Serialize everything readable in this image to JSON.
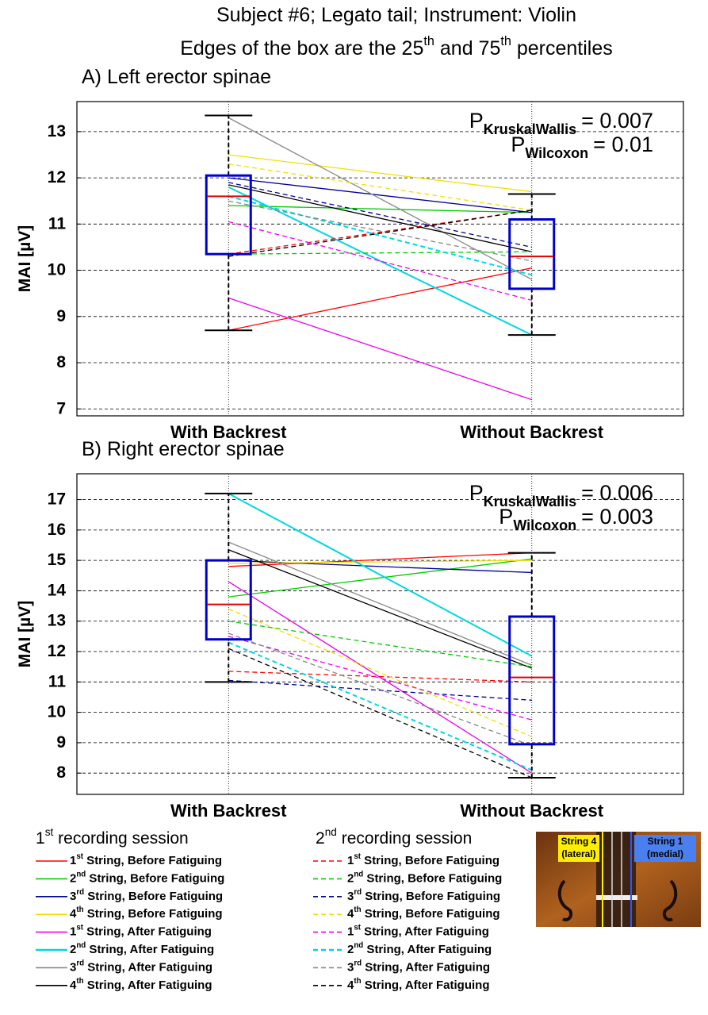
{
  "header": {
    "title": "Subject #6; Legato tail; Instrument: Violin",
    "subtitle": "Edges of the box are the 25th and 75th percentiles"
  },
  "chart_data": [
    {
      "type": "box",
      "title": "A) Left erector spinae",
      "ylabel": "MAI [µV]",
      "categories": [
        "With Backrest",
        "Without Backrest"
      ],
      "ylim": [
        6.85,
        13.65
      ],
      "yticks": [
        7,
        8,
        9,
        10,
        11,
        12,
        13
      ],
      "grid": true,
      "boxes": [
        {
          "whislo": 8.7,
          "q1": 10.35,
          "med": 11.6,
          "q3": 12.05,
          "whishi": 13.35
        },
        {
          "whislo": 8.6,
          "q1": 9.6,
          "med": 10.3,
          "q3": 11.1,
          "whishi": 11.65
        }
      ],
      "box_color": "#0000cc",
      "median_color": "#e00000",
      "whisker_color": "#000000",
      "legend_titles": [
        "1st recording session",
        "2nd recording session"
      ],
      "series": [
        {
          "name": "1st String, Before Fatiguing",
          "color": "#ff0000",
          "linestyle": "solid",
          "values": [
            8.7,
            10.05
          ]
        },
        {
          "name": "2nd String, Before Fatiguing",
          "color": "#00cc00",
          "linestyle": "solid",
          "values": [
            11.4,
            11.25
          ]
        },
        {
          "name": "3rd String, Before Fatiguing",
          "color": "#000099",
          "linestyle": "solid",
          "values": [
            12.0,
            11.25
          ]
        },
        {
          "name": "4th String, Before Fatiguing",
          "color": "#f0e000",
          "linestyle": "solid",
          "values": [
            12.5,
            11.7
          ]
        },
        {
          "name": "1st String, After Fatiguing",
          "color": "#ee00ee",
          "linestyle": "solid",
          "values": [
            9.4,
            7.2
          ]
        },
        {
          "name": "2nd String, After Fatiguing",
          "color": "#00d8e0",
          "linestyle": "solid",
          "values": [
            11.8,
            8.6
          ]
        },
        {
          "name": "3rd String, After Fatiguing",
          "color": "#888888",
          "linestyle": "solid",
          "values": [
            13.3,
            9.8
          ]
        },
        {
          "name": "4th String, After Fatiguing",
          "color": "#000000",
          "linestyle": "solid",
          "values": [
            11.85,
            10.4
          ]
        },
        {
          "name": "1st String, Before Fatiguing",
          "color": "#ff0000",
          "linestyle": "dashed",
          "values": [
            10.35,
            11.3
          ]
        },
        {
          "name": "2nd String, Before Fatiguing",
          "color": "#00cc00",
          "linestyle": "dashed",
          "values": [
            10.35,
            10.4
          ]
        },
        {
          "name": "3rd String, Before Fatiguing",
          "color": "#000099",
          "linestyle": "dashed",
          "values": [
            11.9,
            10.5
          ]
        },
        {
          "name": "4th String, Before Fatiguing",
          "color": "#f0e000",
          "linestyle": "dashed",
          "values": [
            12.3,
            11.3
          ]
        },
        {
          "name": "1st String, After Fatiguing",
          "color": "#ee00ee",
          "linestyle": "dashed",
          "values": [
            11.05,
            9.35
          ]
        },
        {
          "name": "2nd String, After Fatiguing",
          "color": "#00d8e0",
          "linestyle": "dashed",
          "values": [
            11.6,
            9.9
          ]
        },
        {
          "name": "3rd String, After Fatiguing",
          "color": "#888888",
          "linestyle": "dashed",
          "values": [
            11.5,
            10.2
          ]
        },
        {
          "name": "4th String, After Fatiguing",
          "color": "#000000",
          "linestyle": "dashed",
          "values": [
            10.3,
            11.3
          ]
        }
      ],
      "annotations": [
        {
          "text": "P",
          "subscript": "KruskalWallis",
          "rest": "= 0.007"
        },
        {
          "text": "P",
          "subscript": "Wilcoxon",
          "rest": "= 0.01"
        }
      ]
    },
    {
      "type": "box",
      "title": "B) Right erector spinae",
      "ylabel": "MAI [µV]",
      "categories": [
        "With Backrest",
        "Without Backrest"
      ],
      "ylim": [
        7.3,
        17.85
      ],
      "yticks": [
        8,
        9,
        10,
        11,
        12,
        13,
        14,
        15,
        16,
        17
      ],
      "grid": true,
      "boxes": [
        {
          "whislo": 11.0,
          "q1": 12.4,
          "med": 13.55,
          "q3": 15.0,
          "whishi": 17.2
        },
        {
          "whislo": 7.85,
          "q1": 8.95,
          "med": 11.15,
          "q3": 13.15,
          "whishi": 15.25
        }
      ],
      "box_color": "#0000cc",
      "median_color": "#e00000",
      "whisker_color": "#000000",
      "series": [
        {
          "color": "#ff0000",
          "linestyle": "solid",
          "values": [
            14.8,
            15.25
          ]
        },
        {
          "color": "#00cc00",
          "linestyle": "solid",
          "values": [
            13.8,
            15.05
          ]
        },
        {
          "color": "#000099",
          "linestyle": "solid",
          "values": [
            15.0,
            14.6
          ]
        },
        {
          "color": "#f0e000",
          "linestyle": "solid",
          "values": [
            14.9,
            15.0
          ]
        },
        {
          "color": "#ee00ee",
          "linestyle": "solid",
          "values": [
            14.3,
            8.0
          ]
        },
        {
          "color": "#00d8e0",
          "linestyle": "solid",
          "values": [
            17.2,
            11.85
          ]
        },
        {
          "color": "#888888",
          "linestyle": "solid",
          "values": [
            15.6,
            11.55
          ]
        },
        {
          "color": "#000000",
          "linestyle": "solid",
          "values": [
            15.35,
            11.45
          ]
        },
        {
          "color": "#ff0000",
          "linestyle": "dashed",
          "values": [
            11.35,
            11.0
          ]
        },
        {
          "color": "#00cc00",
          "linestyle": "dashed",
          "values": [
            13.0,
            11.5
          ]
        },
        {
          "color": "#000099",
          "linestyle": "dashed",
          "values": [
            11.05,
            10.4
          ]
        },
        {
          "color": "#f0e000",
          "linestyle": "dashed",
          "values": [
            13.4,
            9.2
          ]
        },
        {
          "color": "#ee00ee",
          "linestyle": "dashed",
          "values": [
            12.5,
            9.75
          ]
        },
        {
          "color": "#00d8e0",
          "linestyle": "dashed",
          "values": [
            12.3,
            8.1
          ]
        },
        {
          "color": "#888888",
          "linestyle": "dashed",
          "values": [
            12.6,
            8.9
          ]
        },
        {
          "color": "#000000",
          "linestyle": "dashed",
          "values": [
            12.1,
            7.85
          ]
        }
      ],
      "annotations": [
        {
          "text": "P",
          "subscript": "KruskalWallis",
          "rest": "= 0.006"
        },
        {
          "text": "P",
          "subscript": "Wilcoxon",
          "rest": "= 0.003"
        }
      ]
    }
  ],
  "inset": {
    "labels": [
      [
        "String 4",
        "(lateral)"
      ],
      [
        "String 1",
        "(medial)"
      ]
    ]
  }
}
